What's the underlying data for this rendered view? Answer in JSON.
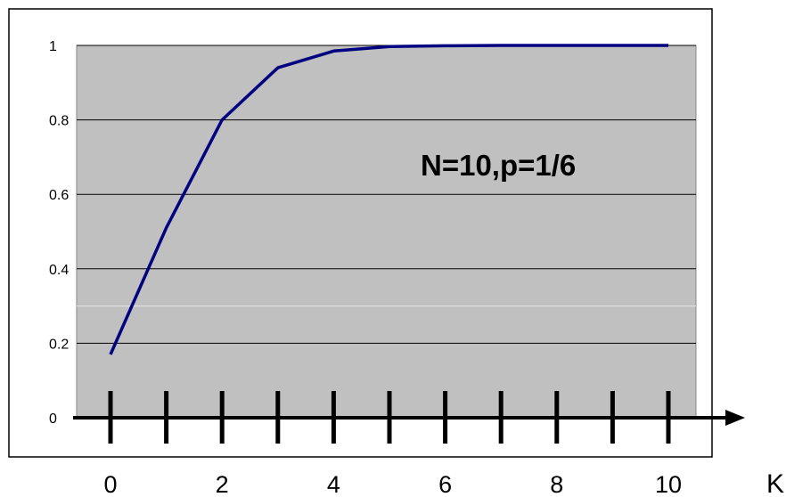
{
  "chart_data": {
    "type": "line",
    "annotation": "N=10,p=1/6",
    "xlabel": "K",
    "x": [
      0,
      1,
      2,
      3,
      4,
      5,
      6,
      7,
      8,
      9,
      10
    ],
    "series": [
      {
        "values": [
          0.17,
          0.51,
          0.8,
          0.94,
          0.985,
          0.997,
          0.999,
          1.0,
          1.0,
          1.0,
          1.0
        ]
      }
    ],
    "xticks": [
      0,
      2,
      4,
      6,
      8,
      10
    ],
    "xtick_labels": [
      "0",
      "2",
      "4",
      "6",
      "8",
      "10"
    ],
    "yticks": [
      0,
      0.2,
      0.4,
      0.6,
      0.8,
      1
    ],
    "ytick_labels": [
      "0",
      "0.2",
      "0.4",
      "0.6",
      "0.8",
      "1"
    ],
    "xlim": [
      0,
      10
    ],
    "ylim": [
      0,
      1
    ],
    "grid": true,
    "colors": {
      "plot_bg": "#c0c0c0",
      "line": "#000080",
      "grid": "#000000",
      "axis": "#000000"
    }
  }
}
